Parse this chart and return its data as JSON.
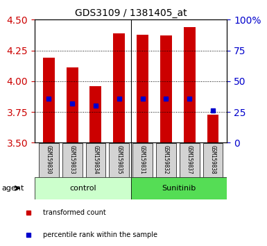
{
  "title": "GDS3109 / 1381405_at",
  "samples": [
    "GSM159830",
    "GSM159833",
    "GSM159834",
    "GSM159835",
    "GSM159831",
    "GSM159832",
    "GSM159837",
    "GSM159838"
  ],
  "bar_heights": [
    4.19,
    4.11,
    3.96,
    4.39,
    4.38,
    4.37,
    4.44,
    3.73
  ],
  "bar_base": 3.5,
  "percentile_values": [
    3.86,
    3.82,
    3.8,
    3.86,
    3.86,
    3.86,
    3.86,
    3.76
  ],
  "ylim": [
    3.5,
    4.5
  ],
  "yticks_left": [
    3.5,
    3.75,
    4.0,
    4.25,
    4.5
  ],
  "yticks_right": [
    0,
    25,
    50,
    75,
    100
  ],
  "bar_color": "#cc0000",
  "percentile_color": "#0000cc",
  "agent_label": "agent",
  "ctrl_color": "#ccffcc",
  "sun_color": "#55dd55",
  "legend_items": [
    {
      "color": "#cc0000",
      "label": "transformed count"
    },
    {
      "color": "#0000cc",
      "label": "percentile rank within the sample"
    }
  ]
}
